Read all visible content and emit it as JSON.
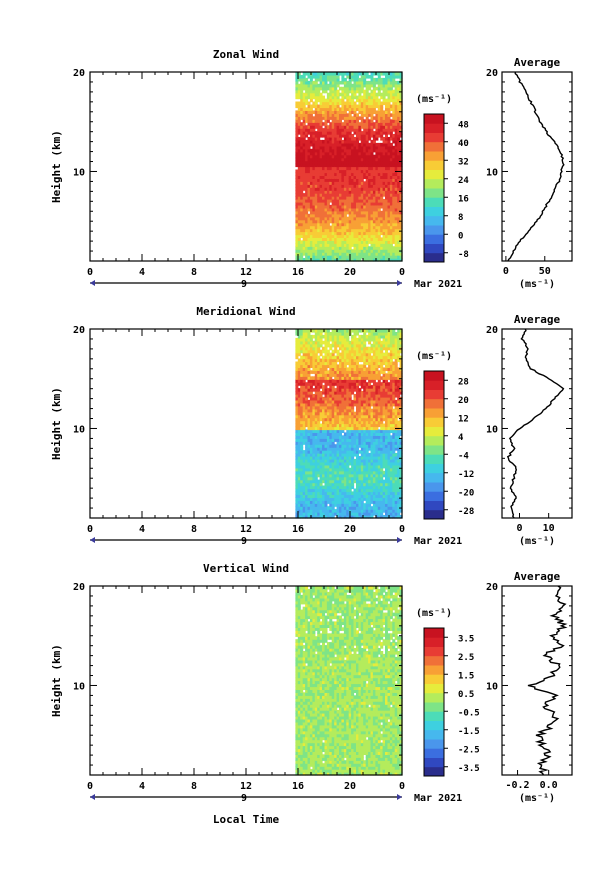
{
  "figure": {
    "date_label": "Mar 2021",
    "xlabel": "Local Time",
    "ylabel": "Height (km)",
    "unit_label": "(ms⁻¹)",
    "average_title": "Average",
    "day_marker": "9"
  },
  "chart_data": [
    {
      "type": "heatmap",
      "title": "Zonal Wind",
      "xlabel": "Local Time",
      "ylabel": "Height (km)",
      "x_ticks": [
        "0",
        "4",
        "8",
        "12",
        "16",
        "20",
        "0"
      ],
      "y_ticks": [
        "10",
        "20"
      ],
      "xlim": [
        0,
        24
      ],
      "ylim": [
        1,
        20
      ],
      "data_x_range": [
        15.8,
        24
      ],
      "colorbar": {
        "label": "(ms⁻¹)",
        "ticks": [
          "48",
          "40",
          "32",
          "24",
          "16",
          "8",
          "0",
          "-8"
        ],
        "range": [
          -12,
          52
        ],
        "colors": [
          "#2a2d8c",
          "#3048c0",
          "#3b6ee0",
          "#4a96ec",
          "#46b8ee",
          "#3ed0e0",
          "#4cdcb8",
          "#7ee487",
          "#b4ec5c",
          "#e6ec3c",
          "#f8cc36",
          "#f8a035",
          "#f07038",
          "#e83c34",
          "#d82028",
          "#c81220"
        ]
      },
      "profile": {
        "title": "Average",
        "x_ticks": [
          "0",
          "50"
        ],
        "xlim": [
          -5,
          85
        ],
        "y": [
          1,
          2,
          3,
          4,
          5,
          6,
          7,
          8,
          9,
          10,
          11,
          12,
          13,
          14,
          15,
          16,
          17,
          18,
          19,
          20
        ],
        "x": [
          2,
          10,
          18,
          30,
          40,
          48,
          55,
          62,
          68,
          72,
          74,
          70,
          62,
          52,
          44,
          38,
          32,
          26,
          18,
          12
        ]
      }
    },
    {
      "type": "heatmap",
      "title": "Meridional Wind",
      "xlabel": "Local Time",
      "ylabel": "Height (km)",
      "x_ticks": [
        "0",
        "4",
        "8",
        "12",
        "16",
        "20",
        "0"
      ],
      "y_ticks": [
        "10",
        "20"
      ],
      "xlim": [
        0,
        24
      ],
      "ylim": [
        1,
        20
      ],
      "data_x_range": [
        15.8,
        24
      ],
      "colorbar": {
        "label": "(ms⁻¹)",
        "ticks": [
          "28",
          "20",
          "12",
          "4",
          "-4",
          "-12",
          "-20",
          "-28"
        ],
        "range": [
          -32,
          32
        ],
        "colors": [
          "#2a2d8c",
          "#3048c0",
          "#3b6ee0",
          "#4a96ec",
          "#46b8ee",
          "#3ed0e0",
          "#4cdcb8",
          "#7ee487",
          "#b4ec5c",
          "#e6ec3c",
          "#f8cc36",
          "#f8a035",
          "#f07038",
          "#e83c34",
          "#d82028",
          "#c81220"
        ]
      },
      "profile": {
        "title": "Average",
        "x_ticks": [
          "0",
          "10"
        ],
        "xlim": [
          -6,
          18
        ],
        "y": [
          1,
          2,
          3,
          4,
          5,
          6,
          7,
          8,
          9,
          10,
          11,
          12,
          13,
          14,
          15,
          16,
          17,
          18,
          19,
          20
        ],
        "x": [
          -2,
          -3,
          -1,
          -3,
          -2,
          -1,
          -4,
          -2,
          -3,
          0,
          5,
          9,
          12,
          15,
          10,
          4,
          2,
          3,
          1,
          2
        ]
      }
    },
    {
      "type": "heatmap",
      "title": "Vertical Wind",
      "xlabel": "Local Time",
      "ylabel": "Height (km)",
      "x_ticks": [
        "0",
        "4",
        "8",
        "12",
        "16",
        "20",
        "0"
      ],
      "y_ticks": [
        "10",
        "20"
      ],
      "xlim": [
        0,
        24
      ],
      "ylim": [
        1,
        20
      ],
      "data_x_range": [
        15.8,
        24
      ],
      "colorbar": {
        "label": "(ms⁻¹)",
        "ticks": [
          "3.5",
          "2.5",
          "1.5",
          "0.5",
          "-0.5",
          "-1.5",
          "-2.5",
          "-3.5"
        ],
        "range": [
          -4,
          4
        ],
        "colors": [
          "#2a2d8c",
          "#3048c0",
          "#3b6ee0",
          "#4a96ec",
          "#46b8ee",
          "#3ed0e0",
          "#4cdcb8",
          "#7ee487",
          "#b4ec5c",
          "#e6ec3c",
          "#f8cc36",
          "#f8a035",
          "#f07038",
          "#e83c34",
          "#d82028",
          "#c81220"
        ]
      },
      "profile": {
        "title": "Average",
        "x_ticks": [
          "-0.2",
          "0.0"
        ],
        "xlim": [
          -0.3,
          0.15
        ],
        "y": [
          1,
          2,
          3,
          4,
          5,
          6,
          7,
          8,
          9,
          10,
          11,
          12,
          13,
          14,
          15,
          16,
          17,
          18,
          19,
          20
        ],
        "x": [
          -0.02,
          -0.05,
          0.0,
          -0.04,
          -0.06,
          0.02,
          0.05,
          -0.03,
          0.04,
          -0.12,
          0.02,
          0.06,
          -0.02,
          0.08,
          0.03,
          0.1,
          0.04,
          0.09,
          0.05,
          0.06
        ]
      }
    }
  ]
}
